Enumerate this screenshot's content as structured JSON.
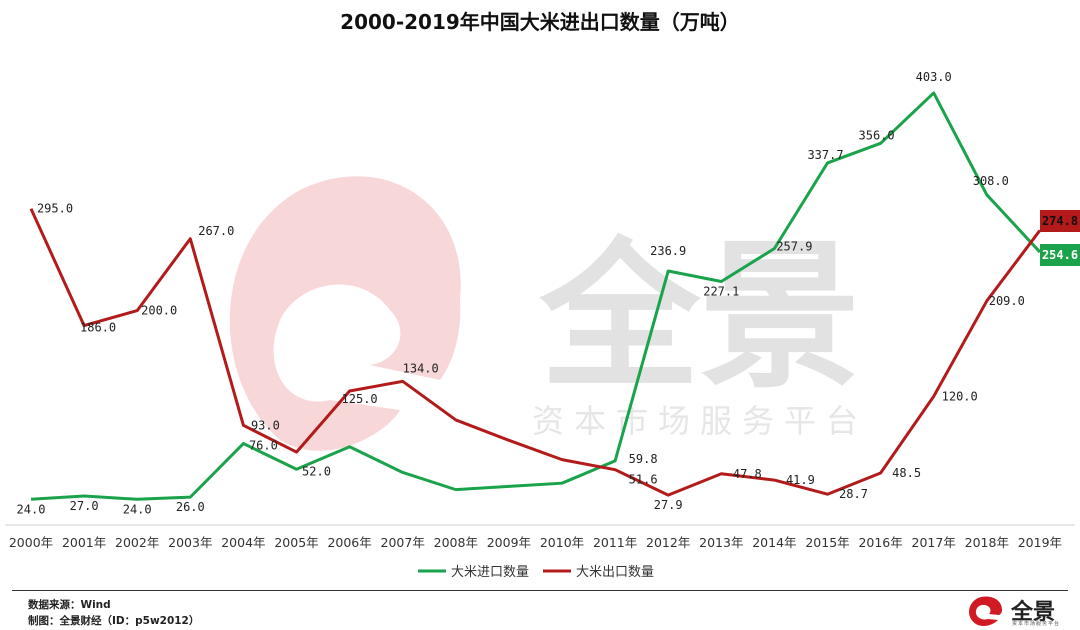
{
  "chart_data": {
    "type": "line",
    "title": "2000-2019年中国大米进出口数量（万吨）",
    "categories": [
      "2000年",
      "2001年",
      "2002年",
      "2003年",
      "2004年",
      "2005年",
      "2006年",
      "2007年",
      "2008年",
      "2009年",
      "2010年",
      "2011年",
      "2012年",
      "2013年",
      "2014年",
      "2015年",
      "2016年",
      "2017年",
      "2018年",
      "2019年"
    ],
    "series": [
      {
        "name": "大米进口数量",
        "color": "#1aa34a",
        "values": [
          24.0,
          27.0,
          24.0,
          26.0,
          76.0,
          52.0,
          73.0,
          49.0,
          33.0,
          36.0,
          39.0,
          59.8,
          236.9,
          227.1,
          257.9,
          337.7,
          356.0,
          403.0,
          308.0,
          254.6
        ],
        "labels": [
          "24.0",
          "27.0",
          "24.0",
          "26.0",
          "76.0",
          "52.0",
          "",
          "",
          "",
          "",
          "",
          "59.8",
          "236.9",
          "227.1",
          "257.9",
          "337.7",
          "356.0",
          "403.0",
          "308.0",
          "254.6"
        ]
      },
      {
        "name": "大米出口数量",
        "color": "#b31b1b",
        "values": [
          295.0,
          186.0,
          200.0,
          267.0,
          93.0,
          68.0,
          125.0,
          134.0,
          98.0,
          79.0,
          61.0,
          51.6,
          27.9,
          47.8,
          41.9,
          28.7,
          48.5,
          120.0,
          209.0,
          274.8
        ],
        "labels": [
          "295.0",
          "186.0",
          "200.0",
          "267.0",
          "93.0",
          "",
          "125.0",
          "134.0",
          "",
          "",
          "",
          "51.6",
          "27.9",
          "47.8",
          "41.9",
          "28.7",
          "48.5",
          "120.0",
          "209.0",
          "274.8"
        ]
      }
    ],
    "ylim": [
      0,
      430
    ],
    "legend_position": "bottom",
    "grid": false
  },
  "watermark": {
    "brand": "全景",
    "tagline": "资本市场服务平台"
  },
  "footer": {
    "source": "数据来源：Wind",
    "made_by": "制图：全景财经（ID：p5w2012）"
  },
  "logo": {
    "brand": "全景",
    "tagline": "资本市场服务平台"
  }
}
